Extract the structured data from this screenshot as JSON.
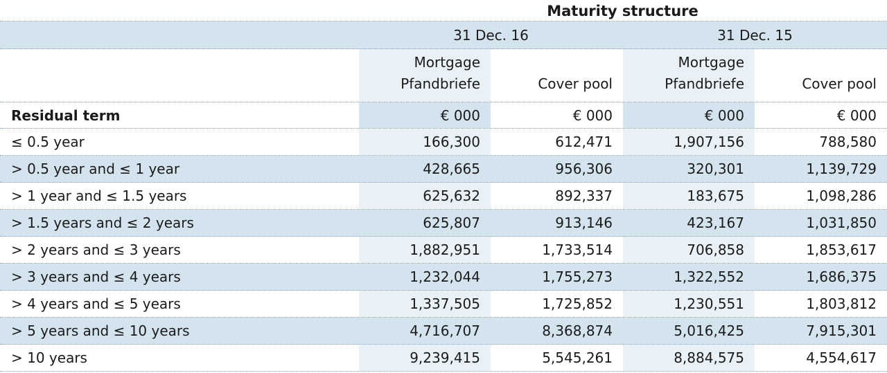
{
  "title": "Maturity structure",
  "dates": [
    "31 Dec. 16",
    "31 Dec. 15"
  ],
  "col_headers": {
    "mortgage_line1": "Mortgage",
    "mortgage_line2": "Pfandbriefe",
    "cover_pool": "Cover pool"
  },
  "unit_row": {
    "label": "Residual term",
    "units": [
      "€ 000",
      "€ 000",
      "€ 000",
      "€ 000"
    ]
  },
  "rows": [
    {
      "term": "≤ 0.5 year",
      "v": [
        "166,300",
        "612,471",
        "1,907,156",
        "788,580"
      ]
    },
    {
      "term": "> 0.5 year and ≤ 1 year",
      "v": [
        "428,665",
        "956,306",
        "320,301",
        "1,139,729"
      ]
    },
    {
      "term": "> 1 year and ≤ 1.5 years",
      "v": [
        "625,632",
        "892,337",
        "183,675",
        "1,098,286"
      ]
    },
    {
      "term": "> 1.5 years and ≤ 2 years",
      "v": [
        "625,807",
        "913,146",
        "423,167",
        "1,031,850"
      ]
    },
    {
      "term": "> 2 years and ≤ 3 years",
      "v": [
        "1,882,951",
        "1,733,514",
        "706,858",
        "1,853,617"
      ]
    },
    {
      "term": "> 3 years and ≤ 4 years",
      "v": [
        "1,232,044",
        "1,755,273",
        "1,322,552",
        "1,686,375"
      ]
    },
    {
      "term": "> 4 years and ≤ 5 years",
      "v": [
        "1,337,505",
        "1,725,852",
        "1,230,551",
        "1,803,812"
      ]
    },
    {
      "term": "> 5 years and ≤ 10 years",
      "v": [
        "4,716,707",
        "8,368,874",
        "5,016,425",
        "7,915,301"
      ]
    },
    {
      "term": "> 10 years",
      "v": [
        "9,239,415",
        "5,545,261",
        "8,884,575",
        "4,554,617"
      ]
    }
  ],
  "colors": {
    "shade": "#d4e4ee",
    "shade_light": "#e9f1f6",
    "rule": "#8aa3b5"
  }
}
